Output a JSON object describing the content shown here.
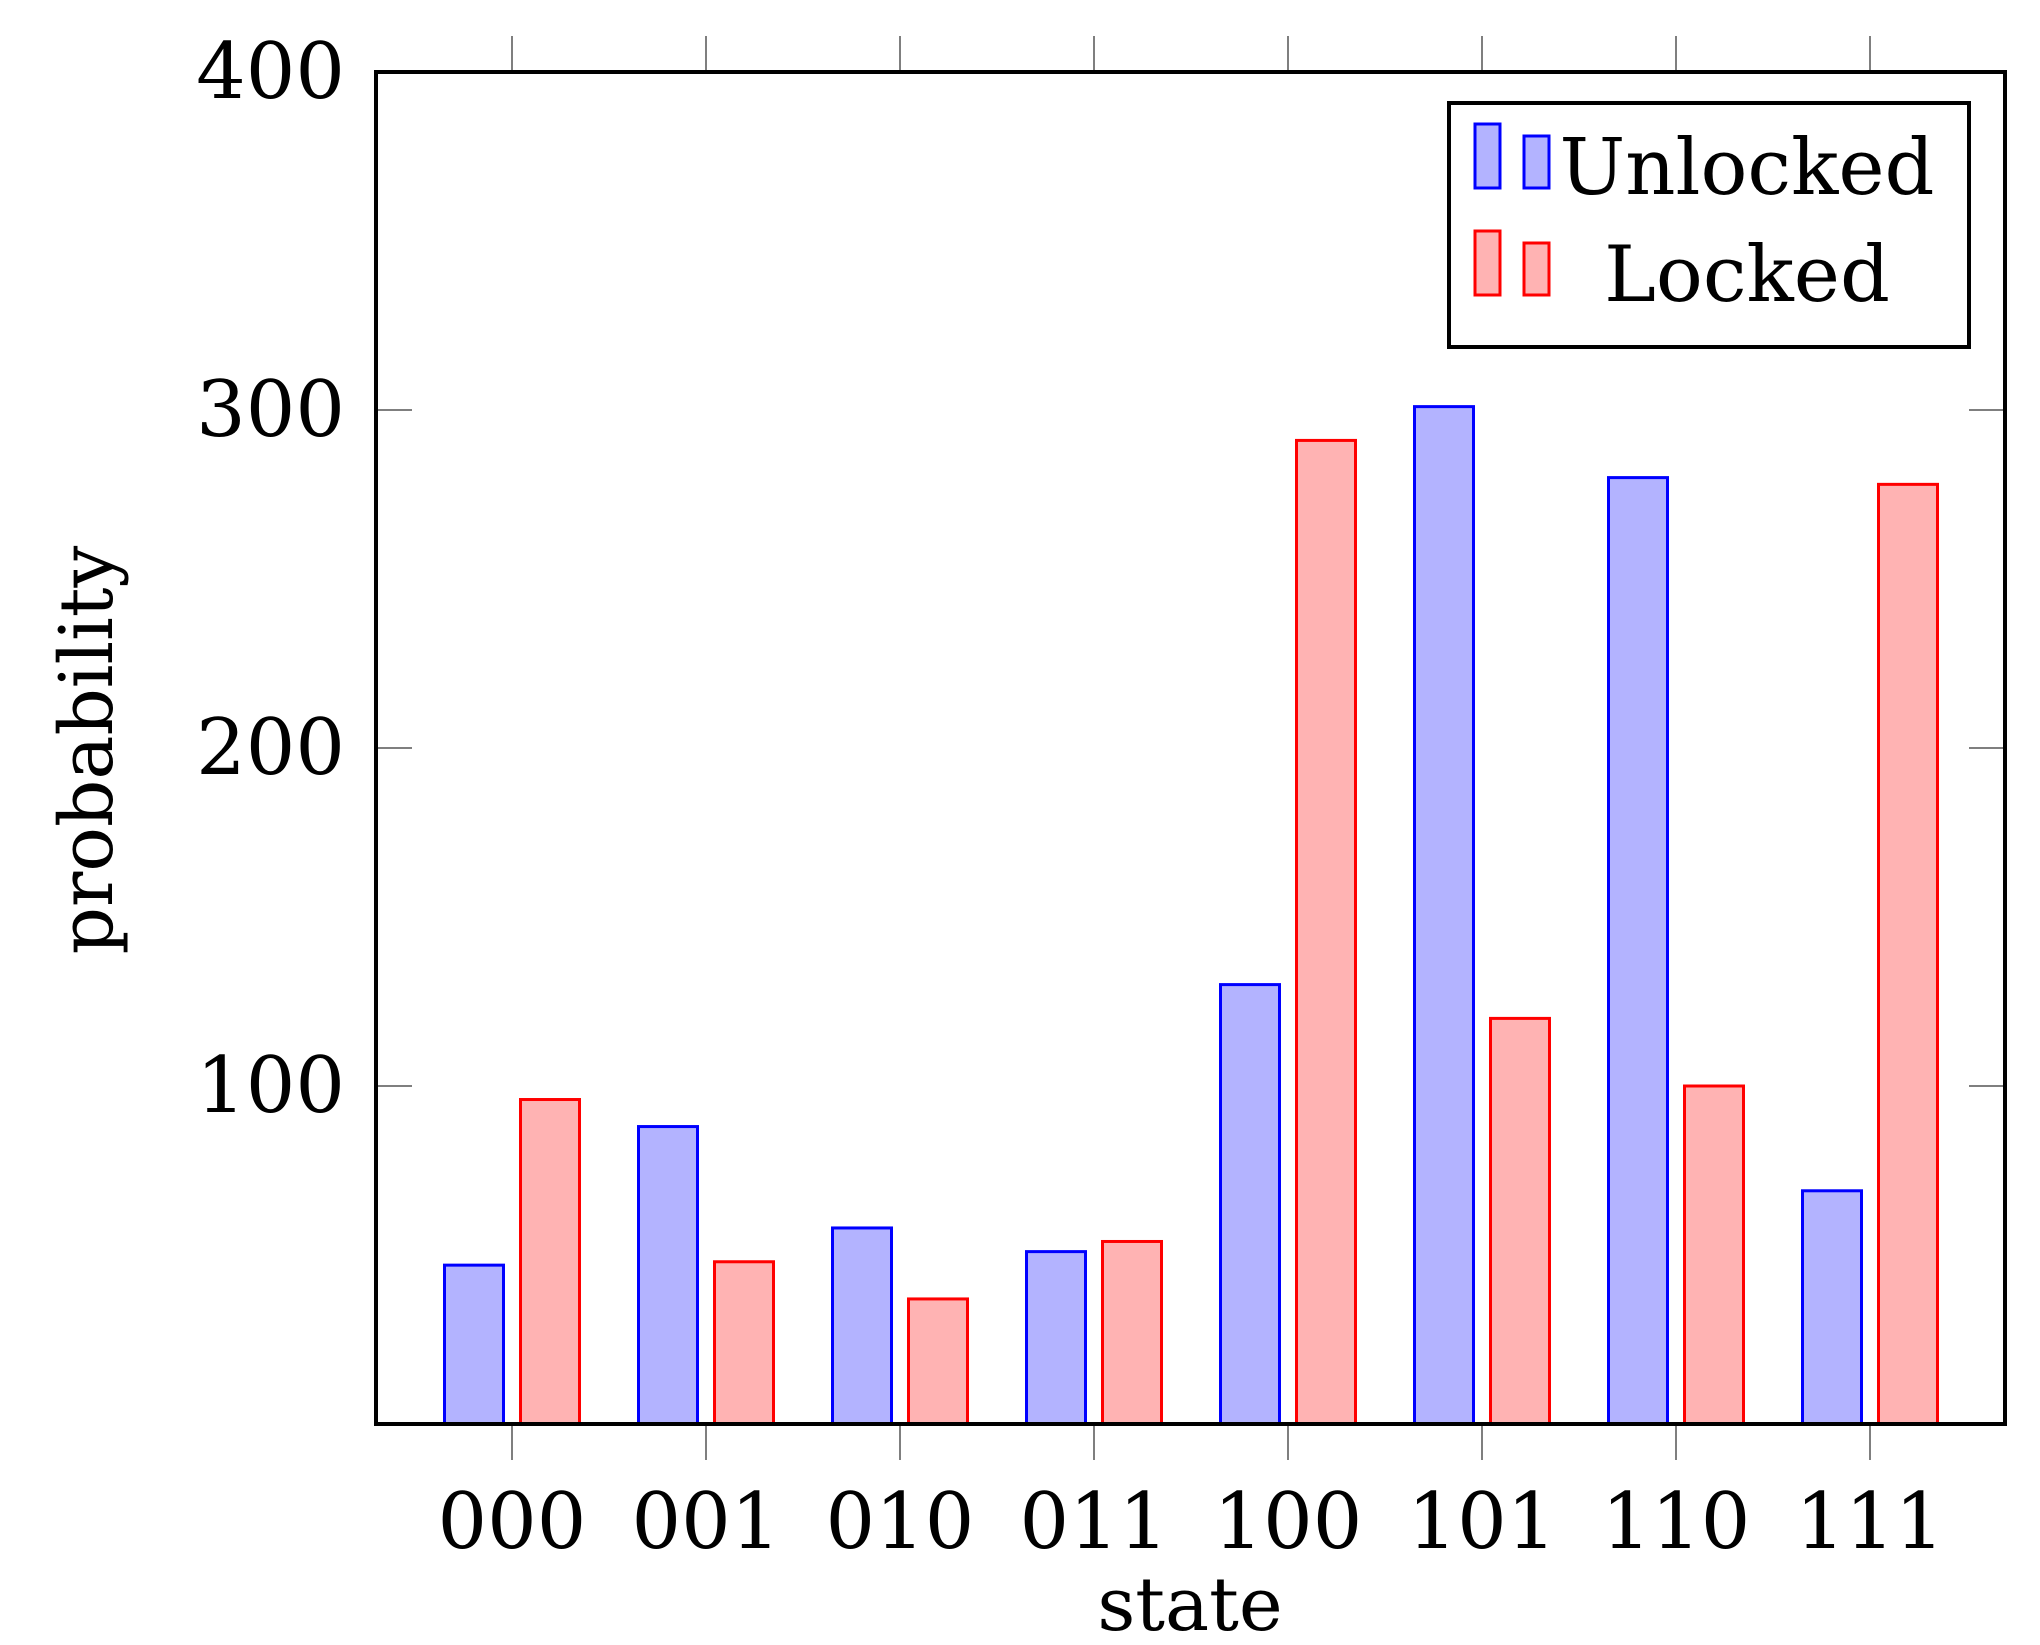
{
  "chart_data": {
    "type": "bar",
    "title": "",
    "xlabel": "state",
    "ylabel": "probability",
    "categories": [
      "000",
      "001",
      "010",
      "011",
      "100",
      "101",
      "110",
      "111"
    ],
    "series": [
      {
        "name": "Unlocked",
        "values": [
          47,
          88,
          58,
          51,
          130,
          301,
          280,
          69
        ],
        "fill": "#b3b3ff",
        "stroke": "#0000ff"
      },
      {
        "name": "Locked",
        "values": [
          96,
          48,
          37,
          54,
          291,
          120,
          100,
          278
        ],
        "fill": "#ffb3b3",
        "stroke": "#ff0000"
      }
    ],
    "ylim": [
      0,
      400
    ],
    "yticks": [
      "100",
      "200",
      "300",
      "400"
    ],
    "grid": false,
    "legend_position": "top-right"
  }
}
